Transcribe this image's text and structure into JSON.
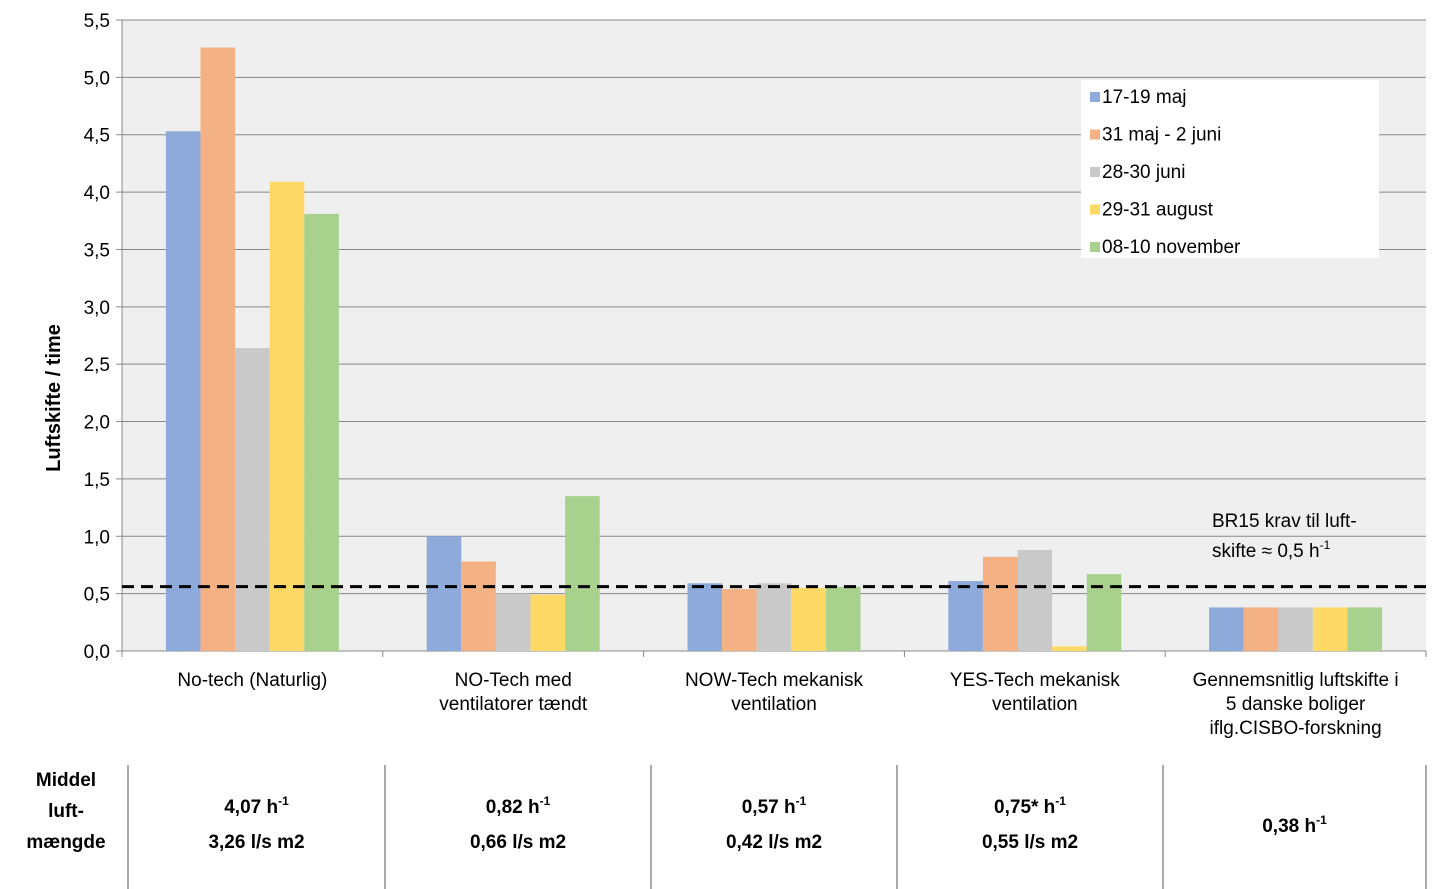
{
  "chart_data": {
    "type": "bar",
    "ylabel": "Luftskifte / time",
    "ylim": [
      0,
      5.5
    ],
    "yticks": [
      "0,0",
      "0,5",
      "1,0",
      "1,5",
      "2,0",
      "2,5",
      "3,0",
      "3,5",
      "4,0",
      "4,5",
      "5,0",
      "5,5"
    ],
    "grid": true,
    "legend_position": "top-right",
    "categories": [
      [
        "No-tech (Naturlig)"
      ],
      [
        "NO-Tech med",
        "ventilatorer tændt"
      ],
      [
        "NOW-Tech mekanisk",
        "ventilation"
      ],
      [
        "YES-Tech mekanisk",
        "ventilation"
      ],
      [
        "Gennemsnitlig luftskifte i",
        "5 danske boliger",
        "iflg.CISBO-forskning"
      ]
    ],
    "series": [
      {
        "name": "17-19 maj",
        "color": "#8eaadb",
        "values": [
          4.53,
          1.0,
          0.59,
          0.61,
          0.38
        ]
      },
      {
        "name": "31 maj - 2 juni",
        "color": "#f4b183",
        "values": [
          5.26,
          0.78,
          0.54,
          0.82,
          0.38
        ]
      },
      {
        "name": "28-30 juni",
        "color": "#c9c9c9",
        "values": [
          2.64,
          0.5,
          0.59,
          0.88,
          0.38
        ]
      },
      {
        "name": "29-31 august",
        "color": "#ffd966",
        "values": [
          4.09,
          0.49,
          0.55,
          0.04,
          0.38
        ]
      },
      {
        "name": "08-10 november",
        "color": "#a9d18e",
        "values": [
          3.81,
          1.35,
          0.56,
          0.67,
          0.38
        ]
      }
    ],
    "reference_line": {
      "value": 0.5,
      "label_line1": "BR15 krav til luft-",
      "label_line2_prefix": "skifte ≈ 0,5 h",
      "label_line2_sup": "-1"
    }
  },
  "summary": {
    "header": [
      "Middel",
      "luft-",
      "mængde"
    ],
    "cells": [
      {
        "line1": "4,07 h",
        "line1_sup": "-1",
        "line2": "3,26 l/s m2"
      },
      {
        "line1": "0,82 h",
        "line1_sup": "-1",
        "line2": "0,66 l/s m2"
      },
      {
        "line1": "0,57 h",
        "line1_sup": "-1",
        "line2": "0,42 l/s m2"
      },
      {
        "line1": "0,75* h",
        "line1_sup": "-1",
        "line2": "0,55 l/s m2"
      },
      {
        "line1": "0,38 h",
        "line1_sup": "-1",
        "line2": ""
      }
    ]
  }
}
